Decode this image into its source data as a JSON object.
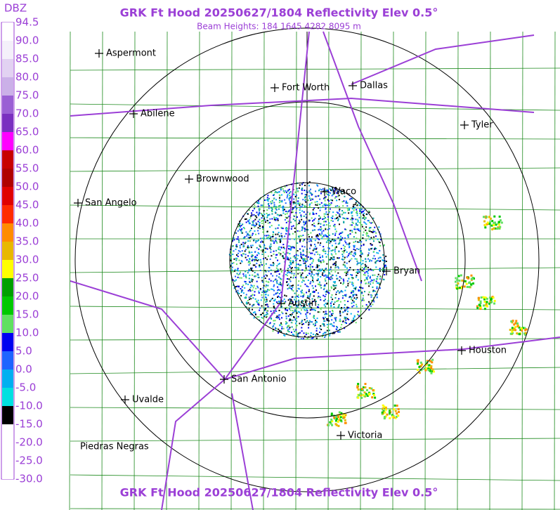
{
  "header": {
    "title": "GRK Ft Hood 20250627/1804 Reflectivity Elev 0.5°",
    "subtitle": "Beam Heights: 184 1645 4282 8095 m"
  },
  "footer": {
    "title": "GRK Ft Hood 20250627/1804 Reflectivity Elev 0.5°"
  },
  "colorbar": {
    "unit": "DBZ",
    "labels": [
      "94.5",
      "90.0",
      "85.0",
      "80.0",
      "75.0",
      "70.0",
      "65.0",
      "60.0",
      "55.0",
      "50.0",
      "45.0",
      "40.0",
      "35.0",
      "30.0",
      "25.0",
      "20.0",
      "15.0",
      "10.0",
      "5.0",
      "0.0",
      "-5.0",
      "-10.0",
      "-15.0",
      "-20.0",
      "-25.0",
      "-30.0"
    ],
    "colors": [
      "#ffffff",
      "#f4f0fa",
      "#e2d2f2",
      "#cbb0e8",
      "#9a5fd4",
      "#7a2fc0",
      "#ff00ff",
      "#c80000",
      "#b00000",
      "#e00000",
      "#ff2a00",
      "#ff8c00",
      "#e8b800",
      "#ffff00",
      "#00a000",
      "#00c800",
      "#60e060",
      "#0000f0",
      "#1e64ff",
      "#00b0f0",
      "#00e0e0",
      "#000000",
      "#ffffff",
      "#ffffff",
      "#ffffff"
    ]
  },
  "cities": [
    "Aspermont",
    "Fort Worth",
    "Dallas",
    "Abilene",
    "Tyler",
    "Brownwood",
    "Waco",
    "San Angelo",
    "Bryan",
    "Austin",
    "Houston",
    "San Antonio",
    "Uvalde",
    "Victoria",
    "Piedras Negras"
  ]
}
